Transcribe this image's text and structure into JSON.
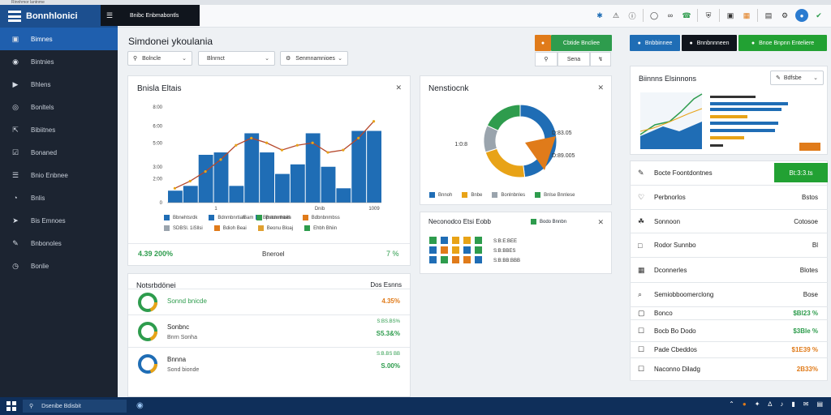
{
  "window": {
    "top_strip_text": "Rinnhmor lantnme"
  },
  "app": {
    "brand": "Bonnhlonici"
  },
  "header": {
    "dark_title": "Bnibc Enbmabontls"
  },
  "sidebar": {
    "items": [
      {
        "label": "Bimnes",
        "icon": "monitor-icon",
        "active": true
      },
      {
        "label": "Bintnies",
        "icon": "camera-icon",
        "active": false
      },
      {
        "label": "Bhlens",
        "icon": "play-icon",
        "active": false
      },
      {
        "label": "Bonltels",
        "icon": "compass-icon",
        "active": false
      },
      {
        "label": "Bibiitnes",
        "icon": "share-icon",
        "active": false
      },
      {
        "label": "Bonaned",
        "icon": "check-icon",
        "active": false
      },
      {
        "label": "Bnio Enbnee",
        "icon": "list-icon",
        "active": false
      },
      {
        "label": "Bnlis",
        "icon": "gauge-icon",
        "active": false
      },
      {
        "label": "Bis Emnoes",
        "icon": "send-icon",
        "active": false
      },
      {
        "label": "Bnbonoles",
        "icon": "edit-icon",
        "active": false
      },
      {
        "label": "Bonlie",
        "icon": "clock-icon",
        "active": false
      }
    ]
  },
  "page": {
    "title": "Simdonei ykoulania"
  },
  "filters": [
    {
      "label": "Bolncle"
    },
    {
      "label": "Blnrnct"
    },
    {
      "label": "Senmnamnioes"
    }
  ],
  "top_buttons": {
    "orange_green": "Cbtide Bncliee",
    "sena": "Sena",
    "blue": "Bnbbinnee",
    "dark": "Bnnbnnneen",
    "green": "Bnoe Bnpnn Enteliere"
  },
  "main_chart": {
    "title": "Bnisla Eltais",
    "kpi_left": "4.39 200%",
    "kpi_mid": "Bneroel",
    "kpi_right": "7 %"
  },
  "chart_data": [
    {
      "type": "bar",
      "categories": [
        "1",
        "2",
        "3",
        "4",
        "5",
        "6",
        "7",
        "8",
        "9",
        "10",
        "11",
        "12",
        "13",
        "14"
      ],
      "series": [
        {
          "values": [
            5,
            7,
            20,
            21,
            7,
            29,
            21,
            12,
            16,
            29,
            15,
            6,
            30,
            30
          ]
        },
        {
          "values": [
            6,
            9,
            13,
            18,
            24,
            27,
            25,
            22,
            24,
            25,
            21,
            22,
            27,
            34
          ]
        }
      ],
      "yticks": [
        "8:00",
        "6:00",
        "5:00",
        "3:00",
        "2:00",
        "0"
      ],
      "ytick_values": [
        40,
        32,
        25,
        15,
        10,
        0
      ],
      "xticks": [
        "1",
        "Dnib",
        "1009"
      ],
      "x_label_extra": "Bam",
      "x_legend": "Bpmdnrnaes",
      "ylim": [
        0,
        40
      ],
      "legend": [
        {
          "label": "Bbnehtsrdk",
          "color": "#1f6db5"
        },
        {
          "label": "Bdnmbnrtiah",
          "color": "#1f6db5"
        },
        {
          "label": "Bsbnnthbilh",
          "color": "#2e9c4d"
        },
        {
          "label": "Bdbnbnmbss",
          "color": "#e07b1a"
        },
        {
          "label": "SDBSl. 1iSllsi",
          "color": "#9aa4ad"
        },
        {
          "label": "Bdioh Beai",
          "color": "#e07b1a"
        },
        {
          "label": "Beonu Bloaj",
          "color": "#e0a030"
        },
        {
          "label": "Ehbh Bhiin",
          "color": "#2e9c4d"
        }
      ]
    },
    {
      "type": "pie",
      "labels": [
        "Bnnoh",
        "Bnbe",
        "Bonlnbnles",
        "Bnlse Bnnlese"
      ],
      "values": [
        48,
        22,
        12,
        18
      ],
      "colors": [
        "#1f6db5",
        "#e8a317",
        "#9aa4ad",
        "#2e9c4d"
      ],
      "annotations": [
        "D:83.05",
        "D:89.005",
        "1:0:8"
      ]
    }
  ],
  "donut_card": {
    "title": "Nenstiocnk"
  },
  "heatmap_card": {
    "title": "Neconodco Etsi Eobb",
    "badge": "Bodo Bnnbn",
    "lines": [
      "S:B:E:BEE",
      "S:B:BBES",
      "S:B:BB:BBB"
    ]
  },
  "notifications": {
    "title": "Notsrbdönei",
    "right_title": "Dos Esnns",
    "items": [
      {
        "label": "Sonnd bnicde",
        "small": "",
        "value": "4.35%",
        "color": "#e07b1a",
        "ring": "#2e9c4d"
      },
      {
        "label": "Sonbnc",
        "small": "Bnrn Sonha",
        "value": "S5.3&%",
        "top": "S:BS.BS%",
        "color": "#2e9c4d",
        "ring": "#2e9c4d"
      },
      {
        "label": "Bnnna",
        "small": "Sond bionde",
        "value": "S.00%",
        "top": "S:B.BS BB",
        "color": "#2e9c4d",
        "ring": "#1f6db5"
      }
    ]
  },
  "right_chart": {
    "title": "Biinnns Elsinnons",
    "dropdown": "Bdfsbe"
  },
  "right_list": [
    {
      "label": "Bocte Foontdontnes",
      "value": "Bt:3:3.ts",
      "icon": "edit-icon",
      "value_color": "#ffffff",
      "highlight": true
    },
    {
      "label": "Perbnorlos",
      "value": "Bstos",
      "icon": "heart-icon",
      "value_color": "#222222"
    },
    {
      "label": "Sonnoon",
      "value": "Cotosoe",
      "icon": "leaf-icon",
      "value_color": "#222222"
    },
    {
      "label": "Rodor Sunnbo",
      "value": "Bl",
      "icon": "chat-icon",
      "value_color": "#222222"
    },
    {
      "label": "Dconnerles",
      "value": "Blotes",
      "icon": "grid-icon",
      "value_color": "#222222"
    },
    {
      "label": "Semiobboomerclong",
      "value": "Bose",
      "icon": "search-icon",
      "value_color": "#222222"
    },
    {
      "label": "Bonco",
      "value": "$Bl23 %",
      "icon": "lock-icon",
      "value_color": "#2e9c4d"
    },
    {
      "label": "Bocb Bo Dodo",
      "value": "$3Ble %",
      "icon": "checkbox-icon",
      "value_color": "#2e9c4d"
    },
    {
      "label": "Pade Cbeddos",
      "value": "$1E39 %",
      "icon": "checkbox-icon",
      "value_color": "#e07b1a"
    },
    {
      "label": "Naconno Diladg",
      "value": "2B33%",
      "icon": "checkbox-icon",
      "value_color": "#e07b1a"
    }
  ],
  "taskbar": {
    "search": "Dsenibe Bdisbit"
  }
}
